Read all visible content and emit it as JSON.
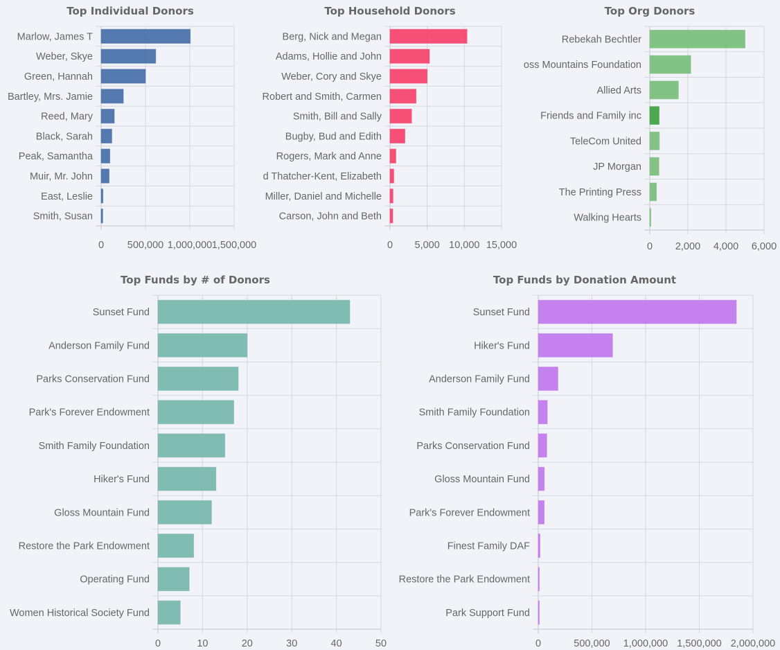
{
  "chart_data": [
    {
      "type": "bar",
      "orientation": "horizontal",
      "title": "Top Individual Donors",
      "categories": [
        "Marlow, James T",
        "Weber, Skye",
        "Green, Hannah",
        "Bartley, Mrs. Jamie",
        "Reed, Mary",
        "Black, Sarah",
        "Peak, Samantha",
        "Muir, Mr. John",
        "East, Leslie",
        "Smith, Susan"
      ],
      "values": [
        1005000,
        615000,
        500000,
        250000,
        148000,
        120000,
        98000,
        90000,
        20000,
        18000
      ],
      "xlim": [
        0,
        1500000
      ],
      "xticks": [
        "0",
        "500,000",
        "1,000,000",
        "1,500,000"
      ],
      "grid": true,
      "color": "#4a72ab"
    },
    {
      "type": "bar",
      "orientation": "horizontal",
      "title": "Top Household Donors",
      "categories": [
        "Berg, Nick and Megan",
        "Adams, Hollie and John",
        "Weber, Cory and Skye",
        "Robert and Smith, Carmen",
        "Smith, Bill and Sally",
        "Bugby, Bud and Edith",
        "Rogers, Mark and Anne",
        "d Thatcher-Kent, Elizabeth",
        "Miller, Daniel and Michelle",
        "Carson, John and Beth"
      ],
      "values": [
        10350,
        5300,
        5000,
        3500,
        2900,
        2000,
        780,
        500,
        400,
        370
      ],
      "xlim": [
        0,
        15000
      ],
      "xticks": [
        "0",
        "5,000",
        "10,000",
        "15,000"
      ],
      "grid": true,
      "color": "#f5476f"
    },
    {
      "type": "bar",
      "orientation": "horizontal",
      "title": "Top Org Donors",
      "categories": [
        "Rebekah Bechtler",
        "oss Mountains Foundation",
        "Allied Arts",
        "Friends and Family inc",
        "TeleCom United",
        "JP Morgan",
        "The Printing Press",
        "Walking Hearts"
      ],
      "values": [
        5000,
        2150,
        1500,
        490,
        500,
        480,
        350,
        30
      ],
      "xlim": [
        0,
        6000
      ],
      "xticks": [
        "0",
        "2,000",
        "4,000",
        "6,000"
      ],
      "grid": true,
      "color": "#7bbf7e",
      "highlight_color": "#43a348",
      "highlight_index": 3
    },
    {
      "type": "bar",
      "orientation": "horizontal",
      "title": "Top Funds by # of Donors",
      "categories": [
        "Sunset Fund",
        "Anderson Family Fund",
        "Parks Conservation Fund",
        "Park's Forever Endowment",
        "Smith Family Foundation",
        "Hiker's Fund",
        "Gloss Mountain Fund",
        "Restore the Park Endowment",
        "Operating Fund",
        "Women Historical Society Fund"
      ],
      "values": [
        43,
        20,
        18,
        17,
        15,
        13,
        12,
        8,
        7,
        5
      ],
      "xlim": [
        0,
        50
      ],
      "xticks": [
        "0",
        "10",
        "20",
        "30",
        "40",
        "50"
      ],
      "grid": true,
      "color": "#7ab8ae"
    },
    {
      "type": "bar",
      "orientation": "horizontal",
      "title": "Top Funds by Donation Amount",
      "categories": [
        "Sunset Fund",
        "Hiker's Fund",
        "Anderson Family Fund",
        "Smith Family Foundation",
        "Parks Conservation Fund",
        "Gloss Mountain Fund",
        "Park's Forever Endowment",
        "Finest Family DAF",
        "Restore the Park Endowment",
        "Park Support Fund"
      ],
      "values": [
        1845000,
        692000,
        183000,
        84000,
        79000,
        56000,
        55000,
        16000,
        7000,
        4000
      ],
      "xlim": [
        0,
        2000000
      ],
      "xticks": [
        "0",
        "500,000",
        "1,000,000",
        "1,500,000",
        "2,000,000"
      ],
      "grid": true,
      "color": "#c27aed"
    }
  ]
}
